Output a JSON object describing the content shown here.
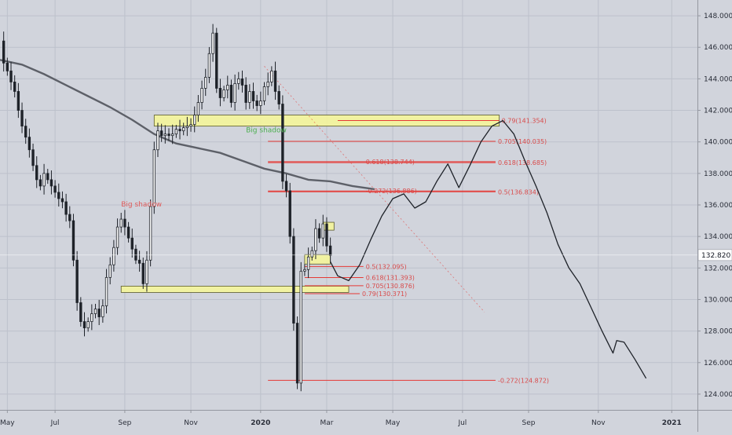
{
  "chart_data": {
    "type": "candlestick",
    "title": "",
    "xlabel": "",
    "ylabel": "",
    "ylim": [
      123.0,
      149.0
    ],
    "grid": true,
    "y_ticks": [
      "124.000",
      "126.000",
      "128.000",
      "130.000",
      "132.000",
      "134.000",
      "136.000",
      "138.000",
      "140.000",
      "142.000",
      "144.000",
      "146.000",
      "148.000"
    ],
    "x_ticks": [
      "May",
      "Jul",
      "Sep",
      "Nov",
      "2020",
      "Mar",
      "May",
      "Jul",
      "Sep",
      "Nov",
      "2021"
    ],
    "x_tick_bold": [
      false,
      false,
      false,
      false,
      true,
      false,
      false,
      false,
      false,
      false,
      true
    ],
    "last_price": "132.820",
    "price_path": [
      [
        0,
        146.4
      ],
      [
        1,
        145.0
      ],
      [
        2,
        144.5
      ],
      [
        3,
        143.8
      ],
      [
        4,
        143.2
      ],
      [
        5,
        142.0
      ],
      [
        6,
        141.0
      ],
      [
        7,
        140.3
      ],
      [
        8,
        139.5
      ],
      [
        9,
        138.5
      ],
      [
        10,
        137.6
      ],
      [
        11,
        137.2
      ],
      [
        12,
        138.0
      ],
      [
        13,
        137.6
      ],
      [
        14,
        137.2
      ],
      [
        15,
        136.8
      ],
      [
        16,
        136.4
      ],
      [
        17,
        136.2
      ],
      [
        18,
        135.4
      ],
      [
        19,
        135.0
      ],
      [
        20,
        132.5
      ],
      [
        21,
        129.8
      ],
      [
        22,
        128.6
      ],
      [
        23,
        128.2
      ],
      [
        24,
        128.6
      ],
      [
        25,
        129.1
      ],
      [
        26,
        129.4
      ],
      [
        27,
        128.9
      ],
      [
        28,
        129.6
      ],
      [
        29,
        131.4
      ],
      [
        30,
        132.2
      ],
      [
        31,
        133.3
      ],
      [
        32,
        134.6
      ],
      [
        33,
        135.1
      ],
      [
        34,
        134.6
      ],
      [
        35,
        133.9
      ],
      [
        36,
        133.2
      ],
      [
        37,
        132.5
      ],
      [
        38,
        132.3
      ],
      [
        39,
        131.0
      ],
      [
        40,
        132.5
      ],
      [
        41,
        135.9
      ],
      [
        42,
        139.5
      ],
      [
        43,
        140.7
      ],
      [
        44,
        140.4
      ],
      [
        45,
        140.5
      ],
      [
        46,
        140.4
      ],
      [
        47,
        140.5
      ],
      [
        48,
        140.8
      ],
      [
        49,
        140.7
      ],
      [
        50,
        140.9
      ],
      [
        51,
        141.0
      ],
      [
        52,
        141.1
      ],
      [
        53,
        141.7
      ],
      [
        54,
        142.5
      ],
      [
        55,
        143.4
      ],
      [
        56,
        144.1
      ],
      [
        57,
        145.6
      ],
      [
        58,
        146.9
      ],
      [
        59,
        143.4
      ],
      [
        60,
        142.8
      ],
      [
        61,
        143.3
      ],
      [
        62,
        143.6
      ],
      [
        63,
        142.5
      ],
      [
        64,
        143.7
      ],
      [
        65,
        144.0
      ],
      [
        66,
        143.6
      ],
      [
        67,
        142.5
      ],
      [
        68,
        143.2
      ],
      [
        69,
        142.6
      ],
      [
        70,
        142.3
      ],
      [
        71,
        142.6
      ],
      [
        72,
        143.5
      ],
      [
        73,
        143.8
      ],
      [
        74,
        144.5
      ],
      [
        75,
        143.2
      ],
      [
        76,
        142.4
      ],
      [
        77,
        137.5
      ],
      [
        78,
        136.9
      ],
      [
        79,
        134.0
      ],
      [
        80,
        128.5
      ],
      [
        81,
        124.7
      ],
      [
        82,
        131.8
      ],
      [
        83,
        131.9
      ],
      [
        84,
        132.7
      ],
      [
        85,
        133.1
      ],
      [
        86,
        134.5
      ],
      [
        87,
        133.9
      ],
      [
        88,
        134.8
      ],
      [
        89,
        133.4
      ],
      [
        90,
        132.8
      ]
    ],
    "moving_average": [
      [
        0,
        145.2
      ],
      [
        6,
        144.9
      ],
      [
        12,
        144.3
      ],
      [
        18,
        143.6
      ],
      [
        24,
        142.9
      ],
      [
        30,
        142.2
      ],
      [
        36,
        141.4
      ],
      [
        42,
        140.5
      ],
      [
        48,
        139.9
      ],
      [
        54,
        139.6
      ],
      [
        60,
        139.3
      ],
      [
        66,
        138.8
      ],
      [
        72,
        138.3
      ],
      [
        78,
        138.0
      ],
      [
        84,
        137.6
      ],
      [
        90,
        137.5
      ],
      [
        96,
        137.2
      ],
      [
        102,
        137.0
      ]
    ],
    "projection_path": [
      [
        90,
        132.4
      ],
      [
        92,
        131.5
      ],
      [
        95,
        131.2
      ],
      [
        98,
        132.2
      ],
      [
        101,
        133.8
      ],
      [
        104,
        135.3
      ],
      [
        107,
        136.4
      ],
      [
        110,
        136.7
      ],
      [
        113,
        135.8
      ],
      [
        116,
        136.2
      ],
      [
        119,
        137.5
      ],
      [
        122,
        138.6
      ],
      [
        125,
        137.1
      ],
      [
        128,
        138.5
      ],
      [
        131,
        140.0
      ],
      [
        134,
        141.0
      ],
      [
        137,
        141.35
      ],
      [
        140,
        140.5
      ],
      [
        143,
        138.8
      ],
      [
        146,
        137.2
      ],
      [
        149,
        135.5
      ],
      [
        152,
        133.5
      ],
      [
        155,
        132.0
      ],
      [
        158,
        131.0
      ],
      [
        161,
        129.5
      ],
      [
        164,
        128.0
      ],
      [
        167,
        126.6
      ],
      [
        168,
        127.4
      ],
      [
        170,
        127.3
      ],
      [
        173,
        126.2
      ],
      [
        176,
        125.0
      ]
    ],
    "support_resistance_zones": [
      {
        "x_start": 42,
        "x_end": 136,
        "low": 141.0,
        "high": 141.7
      },
      {
        "x_start": 33,
        "x_end": 95,
        "low": 130.45,
        "high": 130.85
      },
      {
        "x_start": 88,
        "x_end": 91,
        "low": 134.4,
        "high": 134.9
      },
      {
        "x_start": 83,
        "x_end": 90,
        "low": 132.25,
        "high": 132.85
      }
    ],
    "fib_lines": [
      {
        "price": 141.354,
        "x_start": 92,
        "x_end": 136,
        "label": "0.79(141.354)",
        "label_at": 136
      },
      {
        "price": 140.035,
        "x_start": 73,
        "x_end": 135,
        "label": "0.705(140.035)",
        "label_at": 135
      },
      {
        "price": 138.744,
        "x_start": 73,
        "x_end": 135,
        "label": "0.618(138.744)",
        "label_at": 99
      },
      {
        "price": 138.685,
        "x_start": 73,
        "x_end": 135,
        "label": "0.618(138.685)",
        "label_at": 135
      },
      {
        "price": 136.886,
        "x_start": 73,
        "x_end": 135,
        "label": "-0.272(136.886)",
        "label_at": 99
      },
      {
        "price": 136.834,
        "x_start": 73,
        "x_end": 135,
        "label": "0.5(136.834)",
        "label_at": 135
      },
      {
        "price": 132.095,
        "x_start": 83,
        "x_end": 99,
        "label": "0.5(132.095)",
        "label_at": 99
      },
      {
        "price": 131.393,
        "x_start": 83,
        "x_end": 99,
        "label": "0.618(131.393)",
        "label_at": 99
      },
      {
        "price": 130.876,
        "x_start": 83,
        "x_end": 99,
        "label": "0.705(130.876)",
        "label_at": 99
      },
      {
        "price": 130.371,
        "x_start": 83,
        "x_end": 98,
        "label": "0.79(130.371)",
        "label_at": 98
      },
      {
        "price": 124.872,
        "x_start": 73,
        "x_end": 135,
        "label": "-0.272(124.872)",
        "label_at": 135
      }
    ],
    "trend_line": {
      "x1": 72,
      "y1": 144.8,
      "x2": 132,
      "y2": 129.2
    },
    "annotations": [
      {
        "text": "Big shadow",
        "x": 33,
        "y": 135.9,
        "color": "#e05a5a"
      },
      {
        "text": "Big shadow",
        "x": 67,
        "y": 140.6,
        "color": "#4caf50"
      }
    ],
    "colors": {
      "background": "#d1d4dc",
      "grid": "#bdc1cb",
      "candle": "#1e2229",
      "moving_average": "#5d6068",
      "projection": "#1e2229",
      "zone_fill": "#f4f59a",
      "zone_border": "#5b5b2a",
      "fib_line": "#e53935",
      "fib_label": "#d94b4b",
      "axis_text": "#2a2e39",
      "last_price_bg": "#ffffff"
    }
  }
}
